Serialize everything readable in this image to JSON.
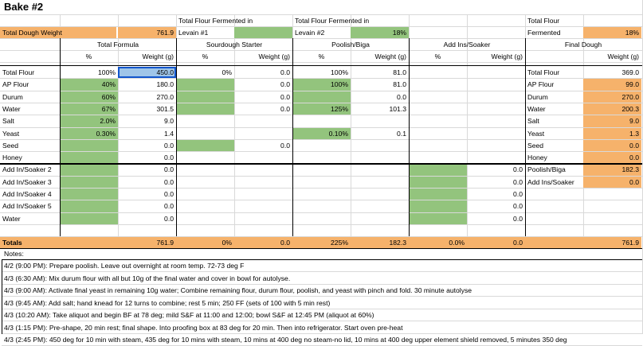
{
  "title": "Bake #2",
  "header": {
    "total_dough_weight_label": "Total Dough Weight",
    "total_dough_weight_value": "761.9",
    "tff_levain1_label_1": "Total Flour Fermented in",
    "tff_levain1_label_2": "Levain #1",
    "tff_levain2_label_1": "Total Flour Fermented in",
    "tff_levain2_label_2": "Levain #2",
    "tff_levain2_value": "18%",
    "total_flour_fermented_label_1": "Total Flour",
    "total_flour_fermented_label_2": "Fermented",
    "total_flour_fermented_value": "18%"
  },
  "sections": {
    "total_formula": "Total Formula",
    "sourdough_starter": "Sourdough Starter",
    "poolish_biga": "Poolish/Biga",
    "add_ins_soaker": "Add Ins/Soaker",
    "final_dough": "Final Dough"
  },
  "subheaders": {
    "pct": "%",
    "weight": "Weight (g)"
  },
  "rows": [
    {
      "label": "Total Flour",
      "tf_pct": "100%",
      "tf_w": "450.0",
      "ss_pct": "0%",
      "ss_w": "0.0",
      "pb_pct": "100%",
      "pb_w": "81.0",
      "ai_pct": "",
      "ai_w": "",
      "fd_label": "Total Flour",
      "fd_w": "369.0"
    },
    {
      "label": "AP Flour",
      "tf_pct": "40%",
      "tf_w": "180.0",
      "ss_pct": "",
      "ss_w": "0.0",
      "pb_pct": "100%",
      "pb_w": "81.0",
      "ai_pct": "",
      "ai_w": "",
      "fd_label": "AP Flour",
      "fd_w": "99.0"
    },
    {
      "label": "Durum",
      "tf_pct": "60%",
      "tf_w": "270.0",
      "ss_pct": "",
      "ss_w": "0.0",
      "pb_pct": "",
      "pb_w": "0.0",
      "ai_pct": "",
      "ai_w": "",
      "fd_label": "Durum",
      "fd_w": "270.0"
    },
    {
      "label": "Water",
      "tf_pct": "67%",
      "tf_w": "301.5",
      "ss_pct": "",
      "ss_w": "0.0",
      "pb_pct": "125%",
      "pb_w": "101.3",
      "ai_pct": "",
      "ai_w": "",
      "fd_label": "Water",
      "fd_w": "200.3"
    },
    {
      "label": "Salt",
      "tf_pct": "2.0%",
      "tf_w": "9.0",
      "ss_pct": "",
      "ss_w": "",
      "pb_pct": "",
      "pb_w": "",
      "ai_pct": "",
      "ai_w": "",
      "fd_label": "Salt",
      "fd_w": "9.0"
    },
    {
      "label": "Yeast",
      "tf_pct": "0.30%",
      "tf_w": "1.4",
      "ss_pct": "",
      "ss_w": "",
      "pb_pct": "0.10%",
      "pb_w": "0.1",
      "ai_pct": "",
      "ai_w": "",
      "fd_label": "Yeast",
      "fd_w": "1.3"
    },
    {
      "label": "Seed",
      "tf_pct": "",
      "tf_w": "0.0",
      "ss_pct": "",
      "ss_w": "0.0",
      "pb_pct": "",
      "pb_w": "",
      "ai_pct": "",
      "ai_w": "",
      "fd_label": "Seed",
      "fd_w": "0.0"
    },
    {
      "label": "Honey",
      "tf_pct": "",
      "tf_w": "0.0",
      "ss_pct": "",
      "ss_w": "",
      "pb_pct": "",
      "pb_w": "",
      "ai_pct": "",
      "ai_w": "",
      "fd_label": "Honey",
      "fd_w": "0.0"
    },
    {
      "label": "Add In/Soaker 2",
      "tf_pct": "",
      "tf_w": "0.0",
      "ss_pct": "",
      "ss_w": "",
      "pb_pct": "",
      "pb_w": "",
      "ai_pct": "",
      "ai_w": "0.0",
      "fd_label": "Poolish/Biga",
      "fd_w": "182.3"
    },
    {
      "label": "Add In/Soaker 3",
      "tf_pct": "",
      "tf_w": "0.0",
      "ss_pct": "",
      "ss_w": "",
      "pb_pct": "",
      "pb_w": "",
      "ai_pct": "",
      "ai_w": "0.0",
      "fd_label": "Add Ins/Soaker",
      "fd_w": "0.0"
    },
    {
      "label": "Add In/Soaker 4",
      "tf_pct": "",
      "tf_w": "0.0",
      "ss_pct": "",
      "ss_w": "",
      "pb_pct": "",
      "pb_w": "",
      "ai_pct": "",
      "ai_w": "0.0",
      "fd_label": "",
      "fd_w": ""
    },
    {
      "label": "Add In/Soaker 5",
      "tf_pct": "",
      "tf_w": "0.0",
      "ss_pct": "",
      "ss_w": "",
      "pb_pct": "",
      "pb_w": "",
      "ai_pct": "",
      "ai_w": "0.0",
      "fd_label": "",
      "fd_w": ""
    },
    {
      "label": "Water",
      "tf_pct": "",
      "tf_w": "0.0",
      "ss_pct": "",
      "ss_w": "",
      "pb_pct": "",
      "pb_w": "",
      "ai_pct": "",
      "ai_w": "0.0",
      "fd_label": "",
      "fd_w": ""
    }
  ],
  "totals": {
    "label": "Totals",
    "tf_w": "761.9",
    "ss_pct": "0%",
    "ss_w": "0.0",
    "pb_pct": "225%",
    "pb_w": "182.3",
    "ai_pct": "0.0%",
    "ai_w": "0.0",
    "fd_w": "761.9"
  },
  "notes_label": "Notes:",
  "notes": [
    "4/2 (9:00 PM): Prepare poolish.  Leave out overnight at room temp.  72-73 deg F",
    "4/3 (6:30 AM):  Mix durum flour with all but 10g of the final water and cover in bowl for autolyse.",
    "4/3 (9:00 AM): Activate final yeast in remaining 10g water; Combine remaining flour, durum flour, poolish, and yeast with pinch and fold.  30 minute autolyse",
    "4/3 (9:45 AM): Add salt; hand knead for 12 turns to combine; rest 5 min; 250 FF (sets of 100 with 5 min rest)",
    "4/3 (10:20 AM): Take aliquot and begin BF at 78 deg; mild S&F at 11:00 and 12:00; bowl S&F at 12:45 PM (aliquot at 60%)",
    "4/3 (1:15 PM): Pre-shape, 20 min rest; final shape.  Into proofing box at 83 deg for 20 min.  Then into refrigerator.  Start oven pre-heat",
    "4/3 (2:45 PM): 450 deg for 10 min with steam, 435 deg for 10 mins with steam, 10 mins at 400 deg no steam-no lid, 10 mins at 400 deg upper element shield removed, 5 minutes 350 deg"
  ],
  "colors": {
    "green": "#93c47d",
    "orange": "#f6b26b",
    "selected": "#9fc5e8",
    "grid": "#d9d9d9"
  }
}
